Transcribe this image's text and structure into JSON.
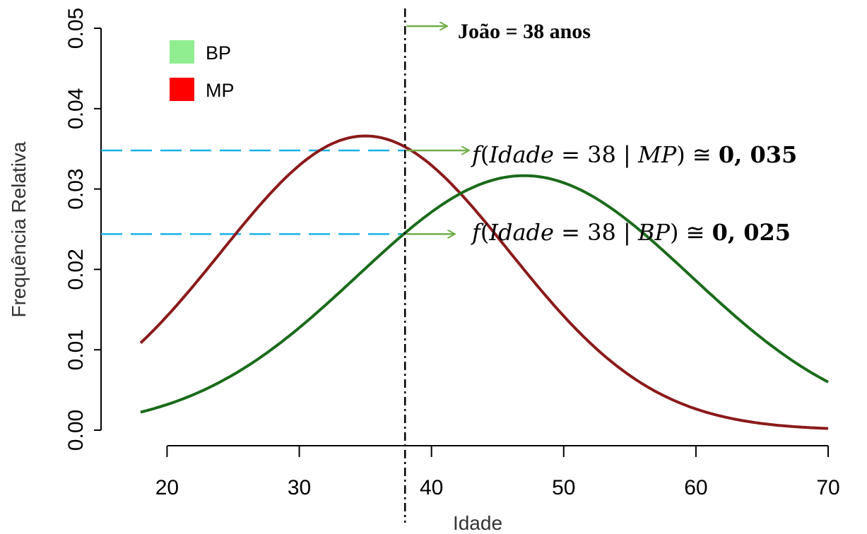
{
  "chart_data": {
    "type": "line",
    "xlabel": "Idade",
    "ylabel": "Frequência Relativa",
    "xlim": [
      18,
      70
    ],
    "ylim": [
      0,
      0.05
    ],
    "x_ticks": [
      "20",
      "30",
      "40",
      "50",
      "60",
      "70"
    ],
    "y_ticks": [
      "0.00",
      "0.01",
      "0.02",
      "0.03",
      "0.04",
      "0.05"
    ],
    "legend_position": "top-left",
    "legend": [
      {
        "label": "BP",
        "color": "#90ee90"
      },
      {
        "label": "MP",
        "color": "#ff0000"
      }
    ],
    "series": [
      {
        "name": "MP",
        "color": "#8b1a1a",
        "distribution": {
          "mean": 35,
          "sd": 10.9
        },
        "x": [
          18,
          20,
          22,
          24,
          26,
          28,
          30,
          32,
          34,
          35,
          36,
          38,
          40,
          42,
          44,
          46,
          48,
          50,
          52,
          54,
          56,
          58,
          60,
          62,
          64,
          66,
          68,
          70
        ],
        "values": [
          0.0111,
          0.0143,
          0.018,
          0.0218,
          0.0259,
          0.0297,
          0.033,
          0.0354,
          0.0363,
          0.0365,
          0.0362,
          0.035,
          0.033,
          0.0299,
          0.026,
          0.0218,
          0.0176,
          0.0137,
          0.0102,
          0.0073,
          0.005,
          0.0033,
          0.0021,
          0.0013,
          0.0007,
          0.0004,
          0.0002,
          0.0002
        ]
      },
      {
        "name": "BP",
        "color": "#1a6b1a",
        "distribution": {
          "mean": 47,
          "sd": 12.6
        },
        "x": [
          18,
          20,
          22,
          24,
          26,
          28,
          30,
          32,
          34,
          36,
          38,
          40,
          42,
          44,
          46,
          47,
          48,
          50,
          52,
          54,
          56,
          58,
          60,
          62,
          64,
          66,
          68,
          70
        ],
        "values": [
          0.0022,
          0.0032,
          0.0044,
          0.006,
          0.0079,
          0.0101,
          0.0127,
          0.0156,
          0.0187,
          0.0219,
          0.0247,
          0.0271,
          0.0292,
          0.0307,
          0.0316,
          0.0317,
          0.0316,
          0.0309,
          0.0295,
          0.0275,
          0.025,
          0.0221,
          0.019,
          0.0158,
          0.0128,
          0.0101,
          0.0078,
          0.006
        ]
      }
    ],
    "marker": {
      "x": 38,
      "label": "João = 38 anos"
    },
    "hlines": [
      {
        "y": 0.0348,
        "series": "MP"
      },
      {
        "y": 0.0244,
        "series": "BP"
      }
    ],
    "annotations": [
      {
        "series": "MP",
        "text": "𝑓(𝐼𝑑𝑎𝑑𝑒 = 38 | 𝑀𝑃) ≅ ",
        "value": "𝟎, 𝟎𝟑𝟓"
      },
      {
        "series": "BP",
        "text": "𝑓(𝐼𝑑𝑎𝑑𝑒 = 38 | 𝐵𝑃) ≅ ",
        "value": "𝟎, 𝟎𝟐𝟓"
      }
    ],
    "colors": {
      "hline": "#1ab0e8",
      "arrow": "#70ad47",
      "axis": "#000000"
    }
  }
}
